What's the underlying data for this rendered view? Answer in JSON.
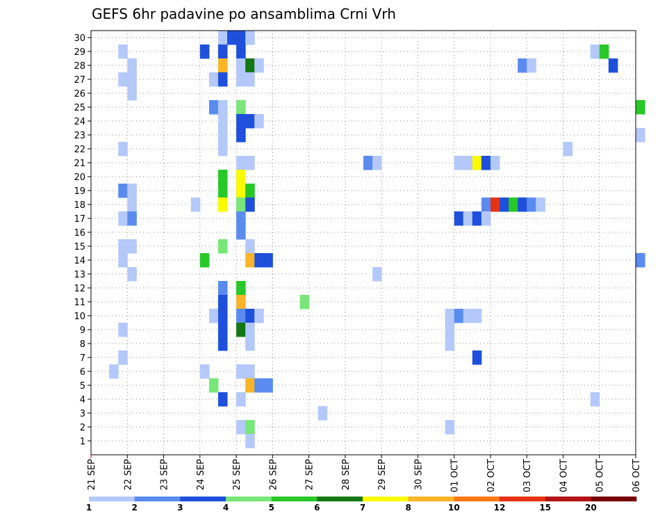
{
  "chart_data": {
    "type": "heatmap",
    "title": "GEFS 6hr padavine po ansamblima Crni Vrh",
    "x_tick_labels": [
      "21 SEP",
      "22 SEP",
      "23 SEP",
      "24 SEP",
      "25 SEP",
      "26 SEP",
      "27 SEP",
      "28 SEP",
      "29 SEP",
      "30 SEP",
      "01 OCT",
      "02 OCT",
      "03 OCT",
      "04 OCT",
      "05 OCT",
      "06 OCT"
    ],
    "y_tick_labels": [
      "1",
      "2",
      "3",
      "4",
      "5",
      "6",
      "7",
      "8",
      "9",
      "10",
      "11",
      "12",
      "13",
      "14",
      "15",
      "16",
      "17",
      "18",
      "19",
      "20",
      "21",
      "22",
      "23",
      "24",
      "25",
      "26",
      "27",
      "28",
      "29",
      "30"
    ],
    "x_range_days": [
      0,
      15
    ],
    "y_range": [
      0,
      30
    ],
    "time_step_hours": 6,
    "grid": "dotted",
    "colorbar": {
      "position": "bottom",
      "labels": [
        "1",
        "2",
        "3",
        "4",
        "5",
        "6",
        "7",
        "8",
        "10",
        "12",
        "15",
        "20"
      ],
      "colors": [
        "#b4c8fa",
        "#5a8cf0",
        "#1e50dc",
        "#78e678",
        "#28c828",
        "#147814",
        "#fafa00",
        "#fab428",
        "#fa7814",
        "#e63214",
        "#b41414",
        "#780000"
      ]
    },
    "cells": [
      [
        30,
        3,
        2,
        1
      ],
      [
        30,
        3,
        3,
        3
      ],
      [
        30,
        3,
        3.25,
        3
      ],
      [
        30,
        4,
        0,
        3
      ],
      [
        30,
        4,
        1,
        1
      ],
      [
        29,
        0,
        3,
        1
      ],
      [
        29,
        3,
        0,
        3
      ],
      [
        29,
        3,
        2,
        3
      ],
      [
        29,
        4,
        0,
        3
      ],
      [
        29,
        13,
        3,
        1
      ],
      [
        29,
        14,
        0,
        5
      ],
      [
        28,
        1,
        0,
        1
      ],
      [
        28,
        3,
        2,
        8
      ],
      [
        28,
        4,
        0,
        1
      ],
      [
        28,
        4,
        1,
        6
      ],
      [
        28,
        4,
        2,
        1
      ],
      [
        28,
        11,
        3,
        2
      ],
      [
        28,
        12,
        0,
        1
      ],
      [
        28,
        14,
        1,
        3
      ],
      [
        27,
        0,
        3,
        1
      ],
      [
        27,
        1,
        0,
        1
      ],
      [
        27,
        3,
        1,
        1
      ],
      [
        27,
        3,
        2,
        3
      ],
      [
        27,
        4,
        0,
        1
      ],
      [
        27,
        4,
        1,
        1
      ],
      [
        26,
        1,
        0,
        1
      ],
      [
        25,
        3,
        1,
        2
      ],
      [
        25,
        3,
        2,
        1
      ],
      [
        25,
        4,
        0,
        4
      ],
      [
        25,
        15,
        0,
        5
      ],
      [
        24,
        3,
        2,
        1
      ],
      [
        24,
        4,
        0,
        3
      ],
      [
        24,
        4,
        1,
        3
      ],
      [
        24,
        4,
        2,
        1
      ],
      [
        23,
        3,
        2,
        1
      ],
      [
        23,
        4,
        0,
        3
      ],
      [
        23,
        15,
        0,
        1
      ],
      [
        22,
        0,
        3,
        1
      ],
      [
        22,
        3,
        2,
        1
      ],
      [
        22,
        13,
        0,
        1
      ],
      [
        21,
        4,
        0,
        1
      ],
      [
        21,
        4,
        1,
        1
      ],
      [
        21,
        7,
        2,
        2
      ],
      [
        21,
        7,
        3,
        1
      ],
      [
        21,
        10,
        0,
        1
      ],
      [
        21,
        10,
        1,
        1
      ],
      [
        21,
        10,
        2,
        7
      ],
      [
        21,
        10,
        3,
        3
      ],
      [
        21,
        11,
        0,
        1
      ],
      [
        20,
        3,
        2,
        5
      ],
      [
        20,
        4,
        0,
        7
      ],
      [
        19,
        0,
        3,
        2
      ],
      [
        19,
        1,
        0,
        1
      ],
      [
        19,
        3,
        2,
        5
      ],
      [
        19,
        4,
        0,
        7
      ],
      [
        19,
        4,
        1,
        5
      ],
      [
        18,
        1,
        0,
        1
      ],
      [
        18,
        2,
        3,
        1
      ],
      [
        18,
        3,
        2,
        7
      ],
      [
        18,
        4,
        0,
        4
      ],
      [
        18,
        4,
        1,
        3
      ],
      [
        18,
        10,
        3,
        2
      ],
      [
        18,
        11,
        0,
        10
      ],
      [
        18,
        11,
        1,
        3
      ],
      [
        18,
        11,
        2,
        5
      ],
      [
        18,
        11,
        3,
        3
      ],
      [
        18,
        12,
        0,
        2
      ],
      [
        18,
        12,
        1,
        1
      ],
      [
        17,
        0,
        3,
        1
      ],
      [
        17,
        1,
        0,
        2
      ],
      [
        17,
        4,
        0,
        2
      ],
      [
        17,
        10,
        0,
        3
      ],
      [
        17,
        10,
        1,
        1
      ],
      [
        17,
        10,
        2,
        3
      ],
      [
        17,
        10,
        3,
        1
      ],
      [
        16,
        4,
        0,
        2
      ],
      [
        15,
        0,
        3,
        1
      ],
      [
        15,
        1,
        0,
        1
      ],
      [
        15,
        3,
        2,
        4
      ],
      [
        15,
        4,
        1,
        1
      ],
      [
        14,
        0,
        3,
        1
      ],
      [
        14,
        3,
        0,
        5
      ],
      [
        14,
        4,
        1,
        8
      ],
      [
        14,
        4,
        2,
        3
      ],
      [
        14,
        4,
        3,
        3
      ],
      [
        14,
        15,
        0,
        2
      ],
      [
        13,
        1,
        0,
        1
      ],
      [
        13,
        7,
        3,
        1
      ],
      [
        12,
        3,
        2,
        2
      ],
      [
        12,
        4,
        0,
        5
      ],
      [
        11,
        3,
        2,
        3
      ],
      [
        11,
        4,
        0,
        8
      ],
      [
        11,
        5,
        3,
        4
      ],
      [
        10,
        3,
        1,
        1
      ],
      [
        10,
        3,
        2,
        3
      ],
      [
        10,
        4,
        0,
        2
      ],
      [
        10,
        4,
        1,
        3
      ],
      [
        10,
        4,
        2,
        1
      ],
      [
        10,
        9,
        3,
        1
      ],
      [
        10,
        10,
        0,
        2
      ],
      [
        10,
        10,
        1,
        1
      ],
      [
        10,
        10,
        2,
        1
      ],
      [
        9,
        0,
        3,
        1
      ],
      [
        9,
        3,
        2,
        3
      ],
      [
        9,
        4,
        0,
        6
      ],
      [
        9,
        4,
        1,
        1
      ],
      [
        9,
        9,
        3,
        1
      ],
      [
        8,
        3,
        2,
        3
      ],
      [
        8,
        4,
        1,
        1
      ],
      [
        8,
        9,
        3,
        1
      ],
      [
        7,
        0,
        3,
        1
      ],
      [
        7,
        10,
        2,
        3
      ],
      [
        6,
        0,
        2,
        1
      ],
      [
        6,
        3,
        0,
        1
      ],
      [
        6,
        4,
        0,
        1
      ],
      [
        6,
        4,
        1,
        1
      ],
      [
        5,
        3,
        1,
        4
      ],
      [
        5,
        4,
        1,
        8
      ],
      [
        5,
        4,
        2,
        2
      ],
      [
        5,
        4,
        3,
        2
      ],
      [
        4,
        3,
        2,
        3
      ],
      [
        4,
        4,
        0,
        1
      ],
      [
        4,
        13,
        3,
        1
      ],
      [
        3,
        6,
        1,
        1
      ],
      [
        2,
        4,
        0,
        1
      ],
      [
        2,
        4,
        1,
        4
      ],
      [
        2,
        9,
        3,
        1
      ],
      [
        1,
        4,
        1,
        1
      ]
    ]
  }
}
